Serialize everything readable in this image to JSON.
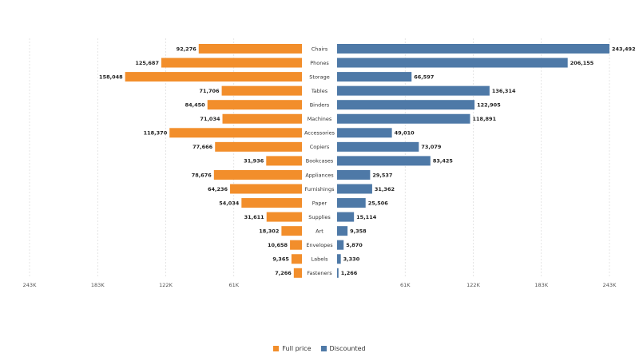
{
  "chart_data": {
    "type": "bar",
    "orientation": "horizontal-butterfly",
    "categories": [
      "Chairs",
      "Phones",
      "Storage",
      "Tables",
      "Binders",
      "Machines",
      "Accessories",
      "Copiers",
      "Bookcases",
      "Appliances",
      "Furnishings",
      "Paper",
      "Supplies",
      "Art",
      "Envelopes",
      "Labels",
      "Fasteners"
    ],
    "series": [
      {
        "name": "Full price",
        "color": "#f28e2b",
        "values": [
          92276,
          125687,
          158048,
          71706,
          84450,
          71034,
          118370,
          77666,
          31936,
          78676,
          64236,
          54034,
          31611,
          18302,
          10658,
          9365,
          7266
        ],
        "labels": [
          "92,276",
          "125,687",
          "158,048",
          "71,706",
          "84,450",
          "71,034",
          "118,370",
          "77,666",
          "31,936",
          "78,676",
          "64,236",
          "54,034",
          "31,611",
          "18,302",
          "10,658",
          "9,365",
          "7,266"
        ]
      },
      {
        "name": "Discounted",
        "color": "#4e79a7",
        "values": [
          243492,
          206155,
          66597,
          136314,
          122905,
          118891,
          49010,
          73079,
          83425,
          29537,
          31362,
          25506,
          15114,
          9358,
          5870,
          3330,
          1266
        ],
        "labels": [
          "243,492",
          "206,155",
          "66,597",
          "136,314",
          "122,905",
          "118,891",
          "49,010",
          "73,079",
          "83,425",
          "29,537",
          "31,362",
          "25,506",
          "15,114",
          "9,358",
          "5,870",
          "3,330",
          "1,266"
        ]
      }
    ],
    "axis_max": 243492,
    "left_ticks": [
      {
        "value": 243492,
        "label": "243K"
      },
      {
        "value": 182619,
        "label": "183K"
      },
      {
        "value": 121746,
        "label": "122K"
      },
      {
        "value": 60873,
        "label": "61K"
      }
    ],
    "right_ticks": [
      {
        "value": 60873,
        "label": "61K"
      },
      {
        "value": 121746,
        "label": "122K"
      },
      {
        "value": 182619,
        "label": "183K"
      },
      {
        "value": 243492,
        "label": "243K"
      }
    ],
    "grid": true,
    "legend_position": "bottom-center"
  }
}
